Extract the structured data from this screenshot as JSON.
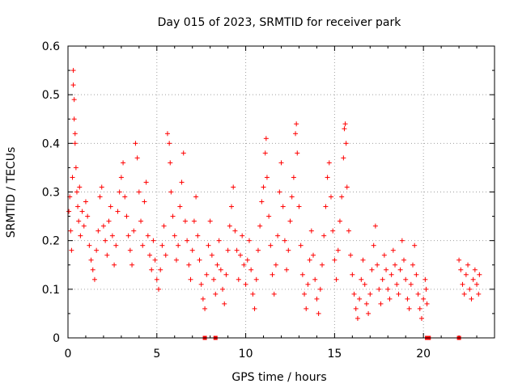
{
  "chart_data": {
    "type": "scatter",
    "title": "Day 015 of 2023, SRMTID for receiver park",
    "xlabel": "GPS time / hours",
    "ylabel": "SRMTID / TECUs",
    "xlim": [
      0,
      24
    ],
    "ylim": [
      0,
      0.6
    ],
    "xticks": [
      0,
      5,
      10,
      15,
      20
    ],
    "xtick_labels": [
      "0",
      "5",
      "10",
      "15",
      "20"
    ],
    "yticks": [
      0,
      0.1,
      0.2,
      0.3,
      0.4,
      0.5,
      0.6
    ],
    "ytick_labels": [
      "0",
      "0.1",
      "0.2",
      "0.3",
      "0.4",
      "0.5",
      "0.6"
    ],
    "grid": true,
    "marker": "+",
    "color": "#ff0000",
    "series": [
      {
        "name": "SRMTID",
        "points": [
          [
            0.05,
            0.26
          ],
          [
            0.1,
            0.29
          ],
          [
            0.15,
            0.22
          ],
          [
            0.2,
            0.18
          ],
          [
            0.25,
            0.33
          ],
          [
            0.3,
            0.55
          ],
          [
            0.3,
            0.52
          ],
          [
            0.35,
            0.49
          ],
          [
            0.35,
            0.45
          ],
          [
            0.4,
            0.42
          ],
          [
            0.4,
            0.4
          ],
          [
            0.45,
            0.35
          ],
          [
            0.5,
            0.3
          ],
          [
            0.55,
            0.27
          ],
          [
            0.6,
            0.24
          ],
          [
            0.65,
            0.31
          ],
          [
            0.7,
            0.21
          ],
          [
            0.8,
            0.26
          ],
          [
            0.9,
            0.23
          ],
          [
            1.0,
            0.28
          ],
          [
            1.1,
            0.25
          ],
          [
            1.2,
            0.19
          ],
          [
            1.3,
            0.16
          ],
          [
            1.4,
            0.14
          ],
          [
            1.5,
            0.12
          ],
          [
            1.6,
            0.18
          ],
          [
            1.7,
            0.22
          ],
          [
            1.8,
            0.29
          ],
          [
            1.9,
            0.31
          ],
          [
            2.0,
            0.23
          ],
          [
            2.1,
            0.2
          ],
          [
            2.2,
            0.17
          ],
          [
            2.3,
            0.24
          ],
          [
            2.4,
            0.27
          ],
          [
            2.5,
            0.21
          ],
          [
            2.6,
            0.15
          ],
          [
            2.7,
            0.19
          ],
          [
            2.8,
            0.26
          ],
          [
            2.9,
            0.3
          ],
          [
            3.0,
            0.33
          ],
          [
            3.1,
            0.36
          ],
          [
            3.2,
            0.29
          ],
          [
            3.3,
            0.25
          ],
          [
            3.4,
            0.21
          ],
          [
            3.5,
            0.18
          ],
          [
            3.6,
            0.15
          ],
          [
            3.7,
            0.22
          ],
          [
            3.8,
            0.4
          ],
          [
            3.9,
            0.37
          ],
          [
            4.0,
            0.3
          ],
          [
            4.1,
            0.24
          ],
          [
            4.2,
            0.19
          ],
          [
            4.3,
            0.28
          ],
          [
            4.4,
            0.32
          ],
          [
            4.5,
            0.21
          ],
          [
            4.6,
            0.17
          ],
          [
            4.7,
            0.14
          ],
          [
            4.8,
            0.2
          ],
          [
            4.9,
            0.16
          ],
          [
            5.0,
            0.12
          ],
          [
            5.1,
            0.1
          ],
          [
            5.2,
            0.14
          ],
          [
            5.3,
            0.19
          ],
          [
            5.4,
            0.23
          ],
          [
            5.5,
            0.17
          ],
          [
            5.6,
            0.42
          ],
          [
            5.7,
            0.4
          ],
          [
            5.75,
            0.36
          ],
          [
            5.8,
            0.3
          ],
          [
            5.9,
            0.25
          ],
          [
            6.0,
            0.21
          ],
          [
            6.1,
            0.16
          ],
          [
            6.2,
            0.19
          ],
          [
            6.3,
            0.27
          ],
          [
            6.4,
            0.32
          ],
          [
            6.5,
            0.38
          ],
          [
            6.6,
            0.24
          ],
          [
            6.7,
            0.2
          ],
          [
            6.8,
            0.15
          ],
          [
            6.9,
            0.12
          ],
          [
            7.0,
            0.18
          ],
          [
            7.1,
            0.24
          ],
          [
            7.2,
            0.29
          ],
          [
            7.3,
            0.21
          ],
          [
            7.4,
            0.16
          ],
          [
            7.5,
            0.11
          ],
          [
            7.6,
            0.08
          ],
          [
            7.7,
            0.06
          ],
          [
            7.8,
            0.13
          ],
          [
            7.9,
            0.19
          ],
          [
            8.0,
            0.24
          ],
          [
            8.1,
            0.17
          ],
          [
            8.2,
            0.12
          ],
          [
            8.3,
            0.09
          ],
          [
            8.4,
            0.15
          ],
          [
            8.5,
            0.2
          ],
          [
            8.6,
            0.14
          ],
          [
            8.7,
            0.1
          ],
          [
            8.8,
            0.07
          ],
          [
            8.9,
            0.13
          ],
          [
            9.0,
            0.18
          ],
          [
            9.1,
            0.23
          ],
          [
            9.2,
            0.27
          ],
          [
            9.3,
            0.31
          ],
          [
            9.4,
            0.22
          ],
          [
            9.5,
            0.18
          ],
          [
            9.6,
            0.12
          ],
          [
            9.7,
            0.17
          ],
          [
            9.8,
            0.21
          ],
          [
            9.9,
            0.15
          ],
          [
            10.0,
            0.11
          ],
          [
            10.1,
            0.16
          ],
          [
            10.2,
            0.2
          ],
          [
            10.3,
            0.14
          ],
          [
            10.4,
            0.09
          ],
          [
            10.5,
            0.06
          ],
          [
            10.6,
            0.12
          ],
          [
            10.7,
            0.18
          ],
          [
            10.8,
            0.23
          ],
          [
            10.9,
            0.28
          ],
          [
            11.0,
            0.31
          ],
          [
            11.1,
            0.38
          ],
          [
            11.15,
            0.41
          ],
          [
            11.2,
            0.33
          ],
          [
            11.3,
            0.25
          ],
          [
            11.4,
            0.19
          ],
          [
            11.5,
            0.13
          ],
          [
            11.6,
            0.09
          ],
          [
            11.7,
            0.15
          ],
          [
            11.8,
            0.21
          ],
          [
            11.9,
            0.3
          ],
          [
            12.0,
            0.36
          ],
          [
            12.1,
            0.27
          ],
          [
            12.2,
            0.2
          ],
          [
            12.3,
            0.14
          ],
          [
            12.4,
            0.18
          ],
          [
            12.5,
            0.24
          ],
          [
            12.6,
            0.29
          ],
          [
            12.7,
            0.33
          ],
          [
            12.8,
            0.42
          ],
          [
            12.85,
            0.44
          ],
          [
            12.9,
            0.38
          ],
          [
            13.0,
            0.27
          ],
          [
            13.1,
            0.19
          ],
          [
            13.2,
            0.13
          ],
          [
            13.3,
            0.09
          ],
          [
            13.4,
            0.06
          ],
          [
            13.5,
            0.11
          ],
          [
            13.6,
            0.16
          ],
          [
            13.7,
            0.22
          ],
          [
            13.8,
            0.17
          ],
          [
            13.9,
            0.12
          ],
          [
            14.0,
            0.08
          ],
          [
            14.1,
            0.05
          ],
          [
            14.2,
            0.1
          ],
          [
            14.3,
            0.15
          ],
          [
            14.4,
            0.21
          ],
          [
            14.5,
            0.27
          ],
          [
            14.6,
            0.33
          ],
          [
            14.7,
            0.36
          ],
          [
            14.8,
            0.29
          ],
          [
            14.9,
            0.22
          ],
          [
            15.0,
            0.16
          ],
          [
            15.1,
            0.12
          ],
          [
            15.2,
            0.18
          ],
          [
            15.3,
            0.24
          ],
          [
            15.4,
            0.29
          ],
          [
            15.5,
            0.37
          ],
          [
            15.55,
            0.43
          ],
          [
            15.6,
            0.44
          ],
          [
            15.65,
            0.4
          ],
          [
            15.7,
            0.31
          ],
          [
            15.8,
            0.22
          ],
          [
            15.9,
            0.17
          ],
          [
            16.0,
            0.13
          ],
          [
            16.1,
            0.09
          ],
          [
            16.2,
            0.06
          ],
          [
            16.3,
            0.04
          ],
          [
            16.4,
            0.08
          ],
          [
            16.5,
            0.12
          ],
          [
            16.6,
            0.16
          ],
          [
            16.7,
            0.11
          ],
          [
            16.8,
            0.07
          ],
          [
            16.9,
            0.05
          ],
          [
            17.0,
            0.09
          ],
          [
            17.1,
            0.14
          ],
          [
            17.2,
            0.19
          ],
          [
            17.3,
            0.23
          ],
          [
            17.4,
            0.15
          ],
          [
            17.5,
            0.1
          ],
          [
            17.6,
            0.07
          ],
          [
            17.7,
            0.12
          ],
          [
            17.8,
            0.17
          ],
          [
            17.9,
            0.14
          ],
          [
            18.0,
            0.1
          ],
          [
            18.1,
            0.08
          ],
          [
            18.2,
            0.13
          ],
          [
            18.3,
            0.18
          ],
          [
            18.4,
            0.15
          ],
          [
            18.5,
            0.11
          ],
          [
            18.6,
            0.09
          ],
          [
            18.7,
            0.14
          ],
          [
            18.8,
            0.2
          ],
          [
            18.9,
            0.16
          ],
          [
            19.0,
            0.12
          ],
          [
            19.1,
            0.08
          ],
          [
            19.2,
            0.06
          ],
          [
            19.3,
            0.11
          ],
          [
            19.4,
            0.15
          ],
          [
            19.5,
            0.19
          ],
          [
            19.6,
            0.13
          ],
          [
            19.7,
            0.09
          ],
          [
            19.8,
            0.06
          ],
          [
            19.9,
            0.04
          ],
          [
            20.0,
            0.08
          ],
          [
            20.1,
            0.12
          ],
          [
            20.15,
            0.1
          ],
          [
            20.2,
            0.07
          ],
          [
            22.0,
            0.16
          ],
          [
            22.1,
            0.14
          ],
          [
            22.2,
            0.11
          ],
          [
            22.3,
            0.09
          ],
          [
            22.4,
            0.13
          ],
          [
            22.5,
            0.15
          ],
          [
            22.6,
            0.1
          ],
          [
            22.7,
            0.08
          ],
          [
            22.8,
            0.12
          ],
          [
            22.9,
            0.14
          ],
          [
            23.0,
            0.11
          ],
          [
            23.1,
            0.09
          ],
          [
            23.15,
            0.13
          ]
        ]
      }
    ],
    "zero_markers_x": [
      7.7,
      8.3,
      20.2,
      20.3,
      22.0
    ]
  }
}
